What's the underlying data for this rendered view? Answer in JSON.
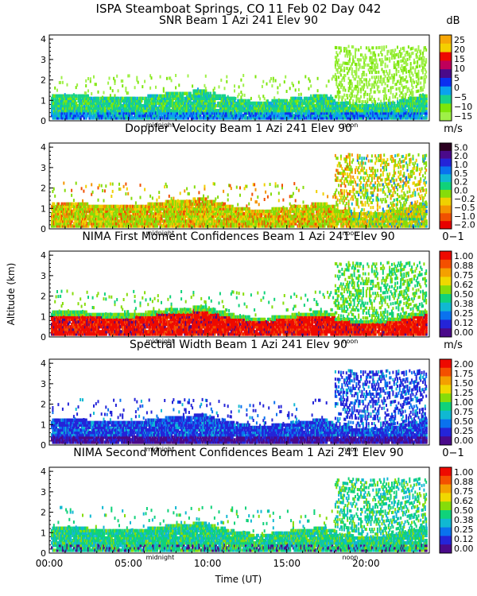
{
  "figure": {
    "title": "ISPA Steamboat Springs, CO   11 Feb 02 Day 042",
    "ylabel": "Altitude (km)",
    "xlabel": "Time (UT)",
    "xticks": [
      "00:00",
      "05:00",
      "10:00",
      "15:00",
      "20:00"
    ],
    "markers": [
      "midnight",
      "noon"
    ]
  },
  "chart_data": [
    {
      "type": "heatmap",
      "title": "SNR Beam 1 Azi 241 Elev 90",
      "unit": "dB",
      "xlim": [
        0,
        24
      ],
      "ylim": [
        0,
        4.2
      ],
      "yticks": [
        0,
        1,
        2,
        3,
        4
      ],
      "colorbar": {
        "labels": [
          "25",
          "20",
          "15",
          "10",
          "5",
          "0",
          "−5",
          "−10",
          "−15"
        ],
        "colors": [
          "#f7a707",
          "#f4d000",
          "#ee0a00",
          "#bf005a",
          "#4a0a8a",
          "#0b2ff0",
          "#0aa2ee",
          "#17d28a",
          "#7de60a",
          "#9ff048"
        ]
      }
    },
    {
      "type": "heatmap",
      "title": "Doppler Velocity Beam 1 Azi 241 Elev 90",
      "unit": "m/s",
      "xlim": [
        0,
        24
      ],
      "ylim": [
        0,
        4.2
      ],
      "yticks": [
        0,
        1,
        2,
        3,
        4
      ],
      "colorbar": {
        "labels": [
          "5.0",
          "2.0",
          "1.0",
          "0.5",
          "0.2",
          "0.0",
          "−0.2",
          "−0.5",
          "−1.0",
          "−2.0"
        ],
        "colors": [
          "#2a0020",
          "#4a0a8a",
          "#2424d8",
          "#0a72ee",
          "#10b8d2",
          "#10d27a",
          "#86dc0a",
          "#f0d000",
          "#f49400",
          "#f05000",
          "#e80000"
        ]
      }
    },
    {
      "type": "heatmap",
      "title": "NIMA First Moment Confidences Beam 1 Azi 241 Elev 90",
      "unit": "0−1",
      "xlim": [
        0,
        24
      ],
      "ylim": [
        0,
        4.2
      ],
      "yticks": [
        0,
        1,
        2,
        3,
        4
      ],
      "colorbar": {
        "labels": [
          "1.00",
          "0.88",
          "0.75",
          "0.62",
          "0.50",
          "0.38",
          "0.25",
          "0.12",
          "0.00"
        ],
        "colors": [
          "#ee0a00",
          "#f45000",
          "#f4a000",
          "#f0d800",
          "#86dc0a",
          "#10d27a",
          "#10b8d2",
          "#0a72ee",
          "#2424d8",
          "#4a0a8a"
        ]
      }
    },
    {
      "type": "heatmap",
      "title": "Spectral Width Beam 1 Azi 241 Elev 90",
      "unit": "m/s",
      "xlim": [
        0,
        24
      ],
      "ylim": [
        0,
        4.2
      ],
      "yticks": [
        0,
        1,
        2,
        3,
        4
      ],
      "colorbar": {
        "labels": [
          "2.00",
          "1.75",
          "1.50",
          "1.25",
          "1.00",
          "0.75",
          "0.50",
          "0.25",
          "0.00"
        ],
        "colors": [
          "#ee0a00",
          "#f45000",
          "#f4a000",
          "#f0d800",
          "#86dc0a",
          "#10d27a",
          "#10b8d2",
          "#0a72ee",
          "#2424d8",
          "#4a0a8a"
        ]
      }
    },
    {
      "type": "heatmap",
      "title": "NIMA Second Moment Confidences Beam 1 Azi 241 Elev 90",
      "unit": "0−1",
      "xlim": [
        0,
        24
      ],
      "ylim": [
        0,
        4.2
      ],
      "yticks": [
        0,
        1,
        2,
        3,
        4
      ],
      "colorbar": {
        "labels": [
          "1.00",
          "0.88",
          "0.75",
          "0.62",
          "0.50",
          "0.38",
          "0.25",
          "0.12",
          "0.00"
        ],
        "colors": [
          "#ee0a00",
          "#f45000",
          "#f4a000",
          "#f0d800",
          "#86dc0a",
          "#10d27a",
          "#10b8d2",
          "#0a72ee",
          "#2424d8",
          "#4a0a8a"
        ]
      }
    }
  ]
}
